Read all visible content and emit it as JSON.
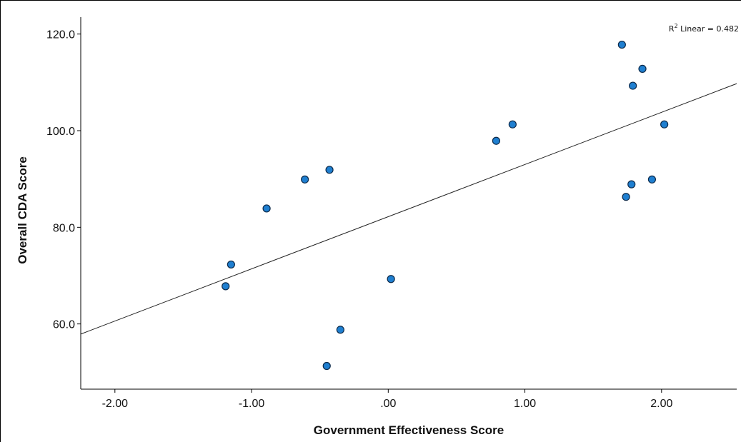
{
  "chart_data": {
    "type": "scatter",
    "title": "",
    "xlabel": "Government Effectiveness Score",
    "ylabel": "Overall CDA Score",
    "xlim": [
      -2.25,
      2.55
    ],
    "ylim": [
      46.5,
      123.5
    ],
    "x_ticks": [
      -2.0,
      -1.0,
      0.0,
      1.0,
      2.0
    ],
    "x_tick_labels": [
      "-2.00",
      "-1.00",
      ".00",
      "1.00",
      "2.00"
    ],
    "y_ticks": [
      60,
      80,
      100,
      120
    ],
    "y_tick_labels": [
      "60.0",
      "80.0",
      "100.0",
      "120.0"
    ],
    "grid": false,
    "marker_color": "#1f7fd0",
    "points": [
      {
        "x": -1.19,
        "y": 67.8
      },
      {
        "x": -1.15,
        "y": 72.3
      },
      {
        "x": -0.89,
        "y": 83.9
      },
      {
        "x": -0.61,
        "y": 89.9
      },
      {
        "x": -0.43,
        "y": 91.9
      },
      {
        "x": -0.45,
        "y": 51.3
      },
      {
        "x": -0.35,
        "y": 58.8
      },
      {
        "x": 0.02,
        "y": 69.3
      },
      {
        "x": 0.79,
        "y": 97.9
      },
      {
        "x": 0.91,
        "y": 101.3
      },
      {
        "x": 1.71,
        "y": 117.8
      },
      {
        "x": 1.86,
        "y": 112.8
      },
      {
        "x": 1.79,
        "y": 109.3
      },
      {
        "x": 2.02,
        "y": 101.3
      },
      {
        "x": 1.78,
        "y": 88.9
      },
      {
        "x": 1.93,
        "y": 89.9
      },
      {
        "x": 1.74,
        "y": 86.3
      }
    ],
    "fit_line": {
      "intercept": 82.2,
      "slope": 10.8
    },
    "annotation": {
      "prefix": "R",
      "sup": "2",
      "suffix": " Linear = 0.482"
    }
  }
}
